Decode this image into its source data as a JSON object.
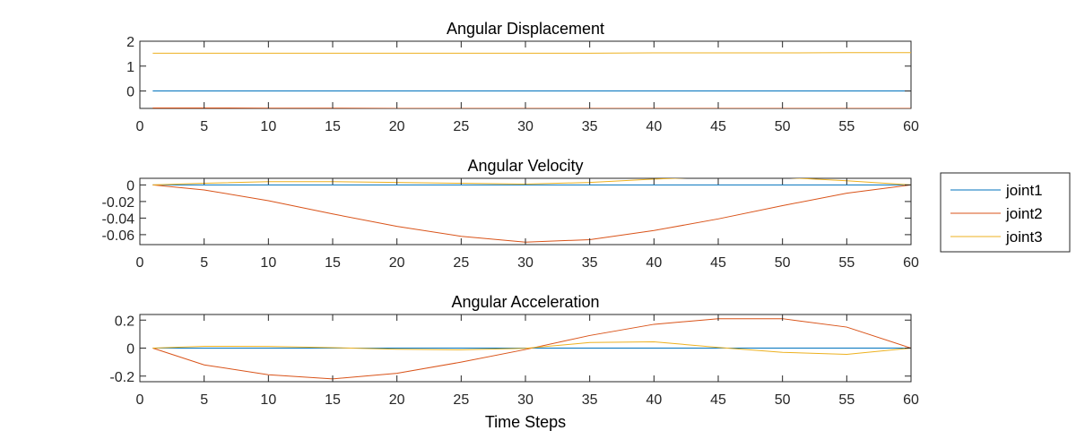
{
  "chart_data": [
    {
      "type": "line",
      "title": "Angular Displacement",
      "xlabel": "",
      "ylabel": "",
      "xlim": [
        0,
        60
      ],
      "ylim": [
        -0.7,
        2
      ],
      "x_ticks": [
        0,
        5,
        10,
        15,
        20,
        25,
        30,
        35,
        40,
        45,
        50,
        55,
        60
      ],
      "y_ticks": [
        0,
        1,
        2
      ],
      "y_tick_labels": [
        "0",
        "1",
        "2"
      ],
      "grid": false,
      "series": [
        {
          "name": "joint1",
          "color": "#0072BD",
          "x": [
            1,
            5,
            10,
            15,
            20,
            25,
            30,
            35,
            40,
            45,
            50,
            55,
            60
          ],
          "y": [
            0,
            0,
            0,
            0,
            0,
            0,
            0,
            0,
            0,
            0,
            0,
            0,
            0
          ]
        },
        {
          "name": "joint2",
          "color": "#D95319",
          "x": [
            1,
            5,
            10,
            15,
            20,
            25,
            30,
            35,
            40,
            45,
            50,
            55,
            60
          ],
          "y": [
            -0.68,
            -0.68,
            -0.69,
            -0.69,
            -0.7,
            -0.7,
            -0.7,
            -0.7,
            -0.7,
            -0.7,
            -0.7,
            -0.7,
            -0.7
          ]
        },
        {
          "name": "joint3",
          "color": "#EDB120",
          "x": [
            1,
            5,
            10,
            15,
            20,
            25,
            30,
            35,
            40,
            45,
            50,
            55,
            60
          ],
          "y": [
            1.52,
            1.52,
            1.52,
            1.52,
            1.52,
            1.52,
            1.52,
            1.52,
            1.53,
            1.53,
            1.53,
            1.54,
            1.54
          ]
        }
      ]
    },
    {
      "type": "line",
      "title": "Angular Velocity",
      "xlabel": "",
      "ylabel": "",
      "xlim": [
        0,
        60
      ],
      "ylim": [
        -0.072,
        0.008
      ],
      "x_ticks": [
        0,
        5,
        10,
        15,
        20,
        25,
        30,
        35,
        40,
        45,
        50,
        55,
        60
      ],
      "y_ticks": [
        0,
        -0.02,
        -0.04,
        -0.06
      ],
      "y_tick_labels": [
        "0",
        "-0.02",
        "-0.04",
        "-0.06"
      ],
      "grid": false,
      "series": [
        {
          "name": "joint1",
          "color": "#0072BD",
          "x": [
            1,
            5,
            10,
            15,
            20,
            25,
            30,
            35,
            40,
            45,
            50,
            55,
            60
          ],
          "y": [
            0,
            0,
            0,
            0,
            0,
            0,
            0,
            0,
            0,
            0,
            0,
            0,
            0
          ]
        },
        {
          "name": "joint2",
          "color": "#D95319",
          "x": [
            1,
            5,
            10,
            15,
            20,
            25,
            30,
            35,
            40,
            45,
            50,
            55,
            60
          ],
          "y": [
            0,
            -0.006,
            -0.019,
            -0.035,
            -0.05,
            -0.062,
            -0.069,
            -0.066,
            -0.055,
            -0.041,
            -0.025,
            -0.01,
            0
          ]
        },
        {
          "name": "joint3",
          "color": "#EDB120",
          "x": [
            1,
            5,
            10,
            15,
            20,
            25,
            30,
            35,
            40,
            45,
            50,
            55,
            60
          ],
          "y": [
            0,
            0.002,
            0.004,
            0.004,
            0.003,
            0.002,
            0.001,
            0.003,
            0.007,
            0.01,
            0.009,
            0.005,
            0
          ]
        }
      ]
    },
    {
      "type": "line",
      "title": "Angular Acceleration",
      "xlabel": "Time Steps",
      "ylabel": "",
      "xlim": [
        0,
        60
      ],
      "ylim": [
        -0.24,
        0.24
      ],
      "x_ticks": [
        0,
        5,
        10,
        15,
        20,
        25,
        30,
        35,
        40,
        45,
        50,
        55,
        60
      ],
      "y_ticks": [
        0.2,
        0,
        -0.2
      ],
      "y_tick_labels": [
        "0.2",
        "0",
        "-0.2"
      ],
      "grid": false,
      "series": [
        {
          "name": "joint1",
          "color": "#0072BD",
          "x": [
            1,
            5,
            10,
            15,
            20,
            25,
            30,
            35,
            40,
            45,
            50,
            55,
            60
          ],
          "y": [
            0,
            0,
            0,
            0,
            0,
            0,
            0,
            0,
            0,
            0,
            0,
            0,
            0
          ]
        },
        {
          "name": "joint2",
          "color": "#D95319",
          "x": [
            1,
            5,
            10,
            15,
            20,
            25,
            30,
            35,
            40,
            45,
            50,
            55,
            60
          ],
          "y": [
            0,
            -0.12,
            -0.19,
            -0.22,
            -0.18,
            -0.1,
            -0.01,
            0.09,
            0.17,
            0.21,
            0.21,
            0.15,
            0
          ]
        },
        {
          "name": "joint3",
          "color": "#EDB120",
          "x": [
            1,
            5,
            10,
            15,
            20,
            25,
            30,
            35,
            40,
            45,
            50,
            55,
            60
          ],
          "y": [
            0,
            0.013,
            0.012,
            0.003,
            -0.008,
            -0.012,
            -0.002,
            0.04,
            0.045,
            0.005,
            -0.03,
            -0.045,
            0
          ]
        }
      ]
    }
  ],
  "legend": {
    "position": "right",
    "entries": [
      {
        "label": "joint1",
        "color": "#0072BD"
      },
      {
        "label": "joint2",
        "color": "#D95319"
      },
      {
        "label": "joint3",
        "color": "#EDB120"
      }
    ]
  }
}
